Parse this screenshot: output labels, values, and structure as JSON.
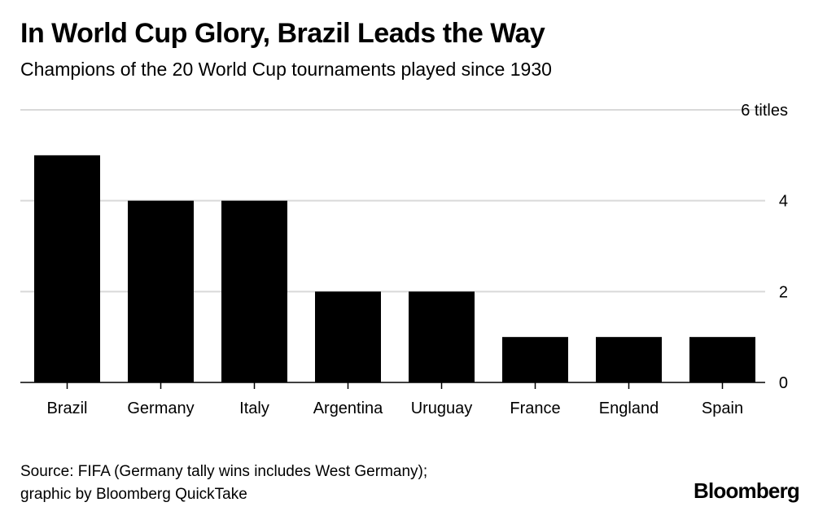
{
  "title": "In World Cup Glory, Brazil Leads the Way",
  "subtitle": "Champions of the 20 World Cup tournaments played since 1930",
  "source": {
    "line1": "Source: FIFA (Germany tally wins includes West Germany);",
    "line2": "graphic by Bloomberg QuickTake"
  },
  "brand": "Bloomberg",
  "colors": {
    "bar": "#000000",
    "grid": "#d9d9d9",
    "axis": "#000000"
  },
  "chart_data": {
    "type": "bar",
    "categories": [
      "Brazil",
      "Germany",
      "Italy",
      "Argentina",
      "Uruguay",
      "France",
      "England",
      "Spain"
    ],
    "values": [
      5,
      4,
      4,
      2,
      2,
      1,
      1,
      1
    ],
    "ylim": [
      0,
      6
    ],
    "yticks": [
      {
        "value": 0,
        "label": "0"
      },
      {
        "value": 2,
        "label": "2"
      },
      {
        "value": 4,
        "label": "4"
      },
      {
        "value": 6,
        "label": "6 titles"
      }
    ],
    "grid": true,
    "ytick_position": "right"
  }
}
